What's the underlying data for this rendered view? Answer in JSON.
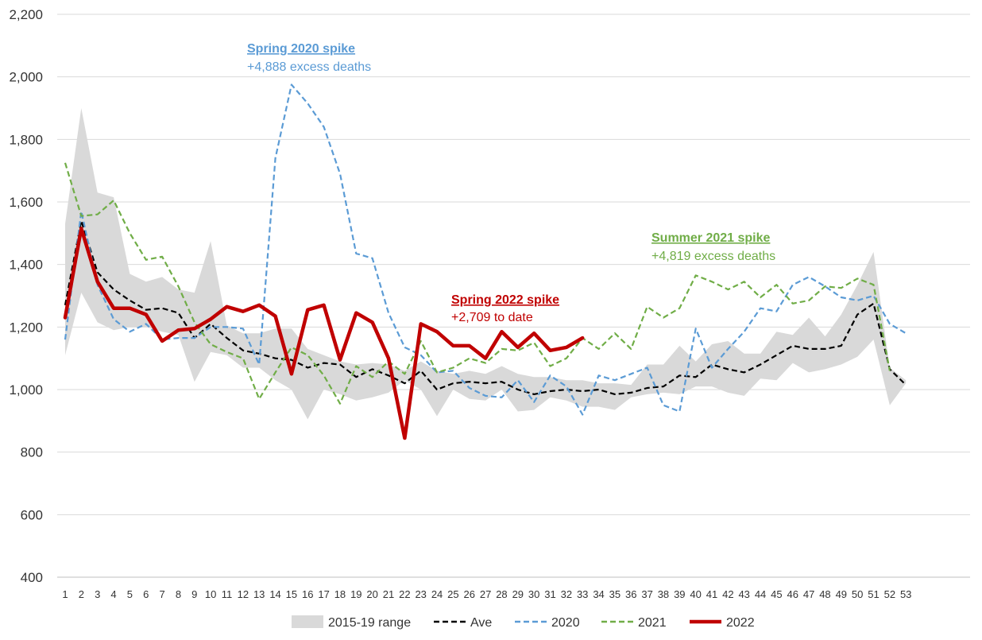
{
  "chart_data": {
    "type": "line",
    "ylim": [
      400,
      2200
    ],
    "yticks": [
      "400",
      "600",
      "800",
      "1,000",
      "1,200",
      "1,400",
      "1,600",
      "1,800",
      "2,000",
      "2,200"
    ],
    "ytick_values": [
      400,
      600,
      800,
      1000,
      1200,
      1400,
      1600,
      1800,
      2000,
      2200
    ],
    "x": [
      1,
      2,
      3,
      4,
      5,
      6,
      7,
      8,
      9,
      10,
      11,
      12,
      13,
      14,
      15,
      16,
      17,
      18,
      19,
      20,
      21,
      22,
      23,
      24,
      25,
      26,
      27,
      28,
      29,
      30,
      31,
      32,
      33,
      34,
      35,
      36,
      37,
      38,
      39,
      40,
      41,
      42,
      43,
      44,
      45,
      46,
      47,
      48,
      49,
      50,
      51,
      52,
      53
    ],
    "grid": "horizontal",
    "legend_position": "bottom",
    "range": {
      "name": "2015-19 range",
      "color": "#d9d9d9",
      "low": [
        1110,
        1310,
        1215,
        1190,
        1200,
        1200,
        1185,
        1175,
        1025,
        1120,
        1110,
        1070,
        1070,
        1030,
        1000,
        905,
        1000,
        985,
        965,
        975,
        990,
        1030,
        1000,
        915,
        1000,
        970,
        965,
        1000,
        930,
        935,
        975,
        965,
        945,
        945,
        935,
        975,
        985,
        990,
        985,
        1010,
        1010,
        990,
        980,
        1035,
        1030,
        1085,
        1055,
        1065,
        1080,
        1105,
        1160,
        950,
        1020
      ],
      "high": [
        1530,
        1900,
        1630,
        1615,
        1370,
        1345,
        1360,
        1320,
        1310,
        1475,
        1205,
        1180,
        1180,
        1195,
        1195,
        1130,
        1110,
        1090,
        1080,
        1085,
        1080,
        1060,
        1090,
        1060,
        1050,
        1060,
        1050,
        1075,
        1050,
        1040,
        1040,
        1030,
        1030,
        1020,
        1020,
        1015,
        1080,
        1080,
        1140,
        1090,
        1145,
        1155,
        1115,
        1115,
        1185,
        1175,
        1230,
        1170,
        1240,
        1335,
        1440,
        1070,
        1030
      ]
    },
    "series": [
      {
        "name": "Ave",
        "color": "#000000",
        "dash": "dashed",
        "values": [
          1270,
          1540,
          1375,
          1320,
          1285,
          1255,
          1260,
          1245,
          1165,
          1210,
          1165,
          1125,
          1115,
          1100,
          1095,
          1070,
          1085,
          1080,
          1040,
          1065,
          1045,
          1020,
          1060,
          1000,
          1020,
          1025,
          1020,
          1025,
          1000,
          985,
          995,
          1000,
          995,
          1000,
          985,
          990,
          1005,
          1010,
          1045,
          1040,
          1080,
          1065,
          1055,
          1080,
          1110,
          1140,
          1130,
          1130,
          1140,
          1240,
          1275,
          1065,
          1015
        ]
      },
      {
        "name": "2020",
        "color": "#5b9bd5",
        "dash": "dashed",
        "values": [
          1160,
          1570,
          1335,
          1225,
          1185,
          1210,
          1160,
          1165,
          1165,
          1200,
          1200,
          1195,
          1080,
          1740,
          1975,
          1915,
          1840,
          1690,
          1435,
          1420,
          1245,
          1135,
          1110,
          1055,
          1060,
          1005,
          980,
          975,
          1030,
          960,
          1045,
          1010,
          920,
          1045,
          1030,
          1050,
          1070,
          950,
          930,
          1195,
          1070,
          1130,
          1185,
          1260,
          1250,
          1335,
          1360,
          1330,
          1295,
          1285,
          1300,
          1210,
          1180
        ]
      },
      {
        "name": "2021",
        "color": "#70ad47",
        "dash": "dashed",
        "values": [
          1725,
          1555,
          1560,
          1605,
          1500,
          1415,
          1425,
          1330,
          1215,
          1145,
          1120,
          1100,
          970,
          1055,
          1135,
          1110,
          1045,
          955,
          1075,
          1040,
          1090,
          1050,
          1155,
          1055,
          1070,
          1100,
          1085,
          1130,
          1125,
          1150,
          1075,
          1100,
          1165,
          1130,
          1180,
          1130,
          1265,
          1230,
          1260,
          1365,
          1345,
          1320,
          1345,
          1295,
          1335,
          1275,
          1285,
          1330,
          1325,
          1355,
          1335,
          1060,
          null
        ]
      },
      {
        "name": "2022",
        "color": "#c00000",
        "dash": "solid",
        "values": [
          1230,
          1515,
          1345,
          1260,
          1260,
          1240,
          1155,
          1190,
          1195,
          1225,
          1265,
          1250,
          1270,
          1235,
          1050,
          1255,
          1270,
          1095,
          1245,
          1215,
          1100,
          845,
          1210,
          1185,
          1140,
          1140,
          1100,
          1185,
          1135,
          1180,
          1125,
          1135,
          1165,
          null,
          null,
          null,
          null,
          null,
          null,
          null,
          null,
          null,
          null,
          null,
          null,
          null,
          null,
          null,
          null,
          null,
          null,
          null,
          null
        ]
      }
    ],
    "annotations": [
      {
        "title": "Spring 2020 spike",
        "text": "+4,888 excess deaths",
        "color": "#5b9bd5"
      },
      {
        "title": "Summer 2021 spike",
        "text": "+4,819 excess deaths",
        "color": "#70ad47"
      },
      {
        "title": "Spring 2022 spike",
        "text": "+2,709 to date",
        "color": "#c00000"
      }
    ]
  }
}
